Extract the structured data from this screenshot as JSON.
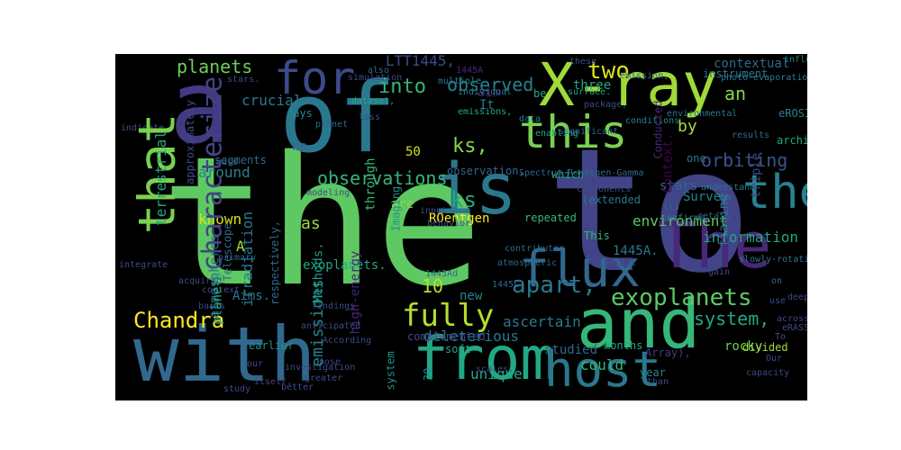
{
  "words": [
    {
      "text": "the",
      "color": "#5ec962"
    },
    {
      "text": "to",
      "color": "#414487"
    },
    {
      "text": "of",
      "color": "#2a788e"
    },
    {
      "text": "a",
      "color": "#443983"
    },
    {
      "text": "with",
      "color": "#31688e"
    },
    {
      "text": "and",
      "color": "#35b779"
    },
    {
      "text": "from",
      "color": "#22a884"
    },
    {
      "text": "is",
      "color": "#2a788e"
    },
    {
      "text": "X-ray",
      "color": "#a0da39"
    },
    {
      "text": "The",
      "color": "#482878"
    },
    {
      "text": "host",
      "color": "#2a788e"
    },
    {
      "text": "that",
      "color": "#7ad151"
    },
    {
      "text": "their",
      "color": "#26828e"
    },
    {
      "text": "flux",
      "color": "#31688e"
    },
    {
      "text": "this",
      "color": "#7ad151"
    },
    {
      "text": "for",
      "color": "#3e4a89"
    },
    {
      "text": "fully",
      "color": "#b5de2b"
    },
    {
      "text": "characterize",
      "color": "#414487"
    },
    {
      "text": "exoplanets",
      "color": "#5ec962"
    },
    {
      "text": "Chandra",
      "color": "#fde725"
    },
    {
      "text": "apart,",
      "color": "#2a788e"
    },
    {
      "text": "observations",
      "color": "#35b779"
    },
    {
      "text": "two",
      "color": "#d8e219"
    },
    {
      "text": "into",
      "color": "#35b779"
    },
    {
      "text": "ks,",
      "color": "#86d549"
    },
    {
      "text": "ks",
      "color": "#22a884"
    },
    {
      "text": "orbiting",
      "color": "#3b528b"
    },
    {
      "text": "planets",
      "color": "#6ece58"
    },
    {
      "text": "observed",
      "color": "#26828e"
    },
    {
      "text": "terrestrial",
      "color": "#22a884"
    },
    {
      "text": "LTT1445,",
      "color": "#3e4a89"
    },
    {
      "text": "crucial",
      "color": "#2a788e"
    },
    {
      "text": "by",
      "color": "#a0da39"
    },
    {
      "text": "10",
      "color": "#b5de2b"
    },
    {
      "text": "system,",
      "color": "#22a884"
    },
    {
      "text": "emissions",
      "color": "#26828e"
    },
    {
      "text": "deleterious",
      "color": "#2a788e"
    },
    {
      "text": "ascertain",
      "color": "#2a788e"
    },
    {
      "text": "could",
      "color": "#35b779"
    },
    {
      "text": "as",
      "color": "#a0da39"
    },
    {
      "text": "known",
      "color": "#d8e219"
    },
    {
      "text": "around",
      "color": "#26828e"
    },
    {
      "text": "unique",
      "color": "#22a884"
    },
    {
      "text": "information",
      "color": "#22a884"
    },
    {
      "text": "environment",
      "color": "#5ec962"
    },
    {
      "text": "studied",
      "color": "#31688e"
    },
    {
      "text": "Methods.",
      "color": "#1f9e89"
    },
    {
      "text": "exoplanets.",
      "color": "#22a884"
    },
    {
      "text": "high-energy",
      "color": "#482878"
    },
    {
      "text": "an",
      "color": "#86d549"
    },
    {
      "text": "contextual",
      "color": "#31688e"
    },
    {
      "text": "triple",
      "color": "#414487"
    },
    {
      "text": "Aims.",
      "color": "#2a788e"
    },
    {
      "text": "new",
      "color": "#26828e"
    },
    {
      "text": "rocky",
      "color": "#6ece58"
    },
    {
      "text": "flaring",
      "color": "#2a788e"
    },
    {
      "text": "stars",
      "color": "#31688e"
    },
    {
      "text": "Survey",
      "color": "#26828e"
    },
    {
      "text": "through",
      "color": "#35b779"
    },
    {
      "text": "irradiation",
      "color": "#2a788e"
    },
    {
      "text": "atmospheres",
      "color": "#31688e"
    },
    {
      "text": "planets.",
      "color": "#22a884"
    },
    {
      "text": "Telescope",
      "color": "#31688e"
    },
    {
      "text": "A",
      "color": "#a0da39"
    },
    {
      "text": "We",
      "color": "#31688e"
    },
    {
      "text": "It",
      "color": "#2a788e"
    },
    {
      "text": "aim",
      "color": "#482878"
    },
    {
      "text": "50",
      "color": "#d8e219"
    },
    {
      "text": "three",
      "color": "#22a884"
    },
    {
      "text": "Context.",
      "color": "#440154"
    },
    {
      "text": "Conducted",
      "color": "#482878"
    },
    {
      "text": "days",
      "color": "#26828e"
    },
    {
      "text": "segments",
      "color": "#31688e"
    },
    {
      "text": "approximately",
      "color": "#3e4a89"
    },
    {
      "text": "ROentgen",
      "color": "#fde725"
    },
    {
      "text": "are",
      "color": "#86d549"
    },
    {
      "text": "1445A.",
      "color": "#2a788e"
    },
    {
      "text": "soft",
      "color": "#22a884"
    },
    {
      "text": "months",
      "color": "#22a884"
    },
    {
      "text": "year",
      "color": "#26828e"
    },
    {
      "text": "divided",
      "color": "#a0da39"
    },
    {
      "text": "earlier",
      "color": "#21918c"
    },
    {
      "text": "complemented",
      "color": "#3e4a89"
    },
    {
      "text": "repeated",
      "color": "#35b779"
    },
    {
      "text": "(extended",
      "color": "#2a788e"
    },
    {
      "text": "which",
      "color": "#22a884"
    },
    {
      "text": "one",
      "color": "#2a788e"
    },
    {
      "text": "This",
      "color": "#35b779"
    },
    {
      "text": "eROSITA",
      "color": "#26828e"
    },
    {
      "text": "archival",
      "color": "#22a884"
    },
    {
      "text": "instrument",
      "color": "#2a788e"
    },
    {
      "text": "be",
      "color": "#22a884"
    },
    {
      "text": "30",
      "color": "#21918c"
    },
    {
      "text": "system",
      "color": "#21918c"
    },
    {
      "text": "respectively,",
      "color": "#31688e"
    },
    {
      "text": "Imaging",
      "color": "#21918c"
    },
    {
      "text": "observation,",
      "color": "#31688e"
    },
    {
      "text": "Array),",
      "color": "#443983"
    },
    {
      "text": "stars.",
      "color": "#3e4a89"
    },
    {
      "text": "1445A",
      "color": "#482878"
    },
    {
      "text": "influenced",
      "color": "#26828e"
    },
    {
      "text": "also",
      "color": "#31688e"
    },
    {
      "text": "simulation",
      "color": "#3e4a89"
    },
    {
      "text": "multiple",
      "color": "#2a788e"
    },
    {
      "text": "individual",
      "color": "#2a788e"
    },
    {
      "text": "photo-evaporation",
      "color": "#2a788e"
    },
    {
      "text": "emission,",
      "color": "#31688e"
    },
    {
      "text": "surface.",
      "color": "#22a884"
    },
    {
      "text": "package,",
      "color": "#3e4a89"
    },
    {
      "text": "dataset,",
      "color": "#22a884"
    },
    {
      "text": "loss",
      "color": "#3e4a89"
    },
    {
      "text": "emissions,",
      "color": "#22a884"
    },
    {
      "text": "data",
      "color": "#26828e"
    },
    {
      "text": "enabling",
      "color": "#22a884"
    },
    {
      "text": "significant",
      "color": "#31688e"
    },
    {
      "text": "planet",
      "color": "#31688e"
    },
    {
      "text": "conditions",
      "color": "#26828e"
    },
    {
      "text": "environmental",
      "color": "#2a788e"
    },
    {
      "text": "results",
      "color": "#31688e"
    },
    {
      "text": "understand",
      "color": "#2a788e"
    },
    {
      "text": "its",
      "color": "#31688e"
    },
    {
      "text": "confirms",
      "color": "#26828e"
    },
    {
      "text": "retain",
      "color": "#31688e"
    },
    {
      "text": "components",
      "color": "#3e4a89"
    },
    {
      "text": "indicate",
      "color": "#3e4a89"
    },
    {
      "text": "mass",
      "color": "#31688e"
    },
    {
      "text": "input",
      "color": "#3e4a89"
    },
    {
      "text": "behavior",
      "color": "#3e4a89"
    },
    {
      "text": "primary",
      "color": "#31688e"
    },
    {
      "text": "acquired",
      "color": "#3e4a89"
    },
    {
      "text": "context",
      "color": "#3e4a89"
    },
    {
      "text": "basis",
      "color": "#3e4a89"
    },
    {
      "text": "integrate",
      "color": "#3e4a89"
    },
    {
      "text": "modeling",
      "color": "#3e4a89"
    },
    {
      "text": "Spectrum-Roentgen-Gamma",
      "color": "#31688e"
    },
    {
      "text": "contributor",
      "color": "#31688e"
    },
    {
      "text": "slowly-rotating",
      "color": "#2a788e"
    },
    {
      "text": "gain",
      "color": "#3e4a89"
    },
    {
      "text": "threat",
      "color": "#3e4a89"
    },
    {
      "text": "atmospheric",
      "color": "#31688e"
    },
    {
      "text": "1445C",
      "color": "#31688e"
    },
    {
      "text": "1445Ad",
      "color": "#31688e"
    },
    {
      "text": "findings",
      "color": "#3e4a89"
    },
    {
      "text": "anticipated",
      "color": "#3e4a89"
    },
    {
      "text": "According",
      "color": "#3e4a89"
    },
    {
      "text": "pose",
      "color": "#3e4a89"
    },
    {
      "text": "greater",
      "color": "#3e4a89"
    },
    {
      "text": "itself.",
      "color": "#3e4a89"
    },
    {
      "text": "study",
      "color": "#3e4a89"
    },
    {
      "text": "our",
      "color": "#3e4a89"
    },
    {
      "text": "better",
      "color": "#3e4a89"
    },
    {
      "text": "investigation",
      "color": "#3e4a89"
    },
    {
      "text": "scales.",
      "color": "#3e4a89"
    },
    {
      "text": "than",
      "color": "#3e4a89"
    },
    {
      "text": "capacity",
      "color": "#3e4a89"
    },
    {
      "text": "Our",
      "color": "#3e4a89"
    },
    {
      "text": "deeper",
      "color": "#3e4a89"
    },
    {
      "text": "eRASS1",
      "color": "#3e4a89"
    },
    {
      "text": "use",
      "color": "#3e4a89"
    },
    {
      "text": "across",
      "color": "#3e4a89"
    },
    {
      "text": "To",
      "color": "#3e4a89"
    },
    {
      "text": "on",
      "color": "#31688e"
    },
    {
      "text": "these",
      "color": "#3e4a89"
    }
  ]
}
